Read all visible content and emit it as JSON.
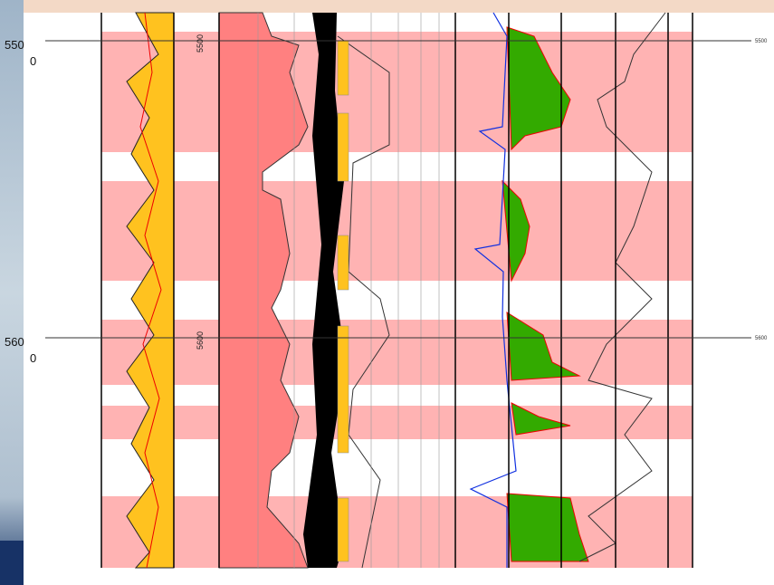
{
  "depth_labels": [
    {
      "major": "550",
      "minor": "0"
    },
    {
      "major": "560",
      "minor": "0"
    }
  ],
  "track_labels": [
    "5500",
    "5600"
  ],
  "right_labels": [
    "5500",
    "5600"
  ]
}
